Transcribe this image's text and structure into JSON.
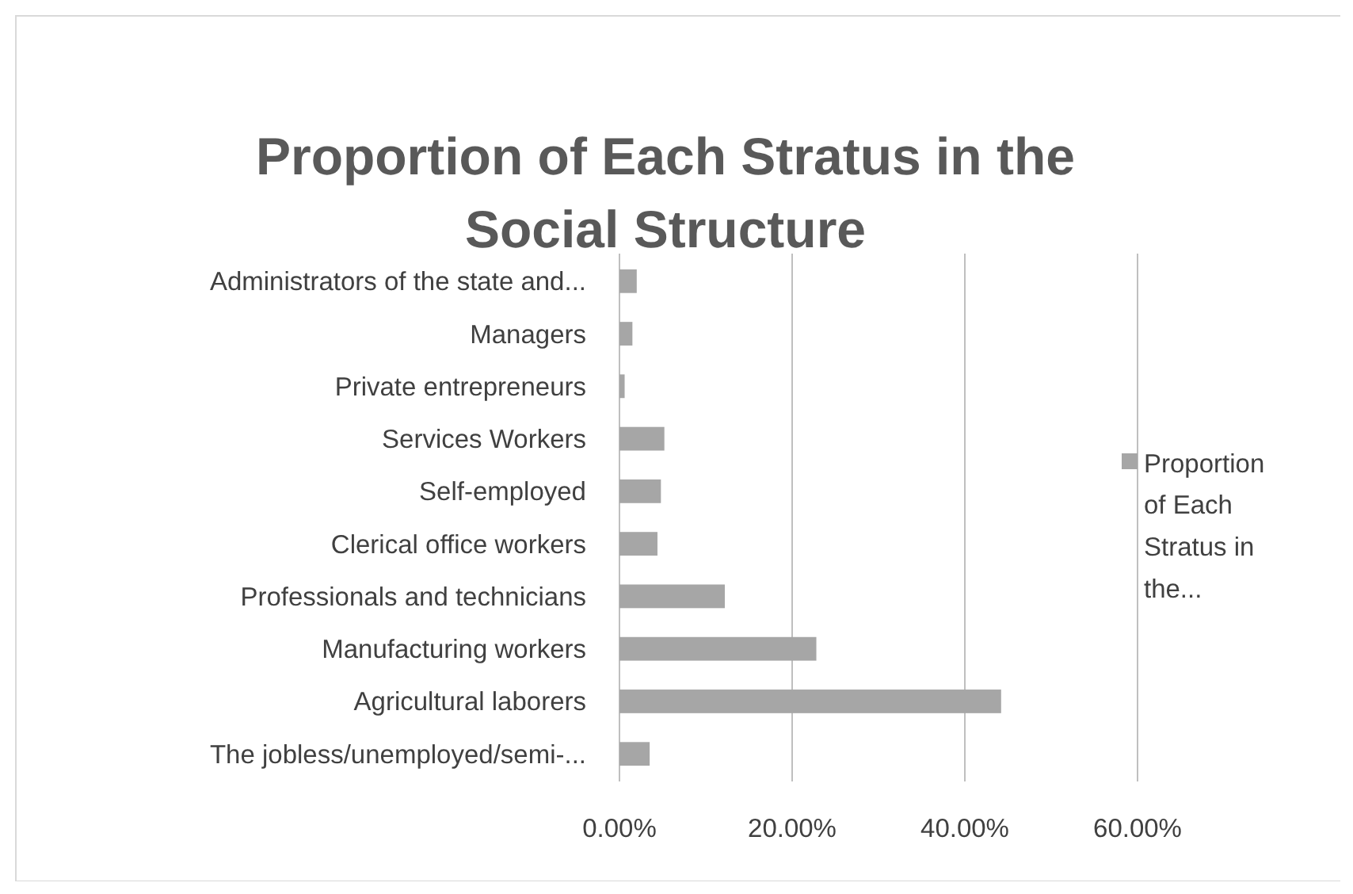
{
  "chart_data": {
    "type": "bar",
    "orientation": "horizontal",
    "title": "Proportion of Each Stratus in the Social Structure",
    "categories": [
      "Administrators of the state and...",
      "Managers",
      "Private entrepreneurs",
      "Services Workers",
      "Self-employed",
      "Clerical office workers",
      "Professionals and technicians",
      "Manufacturing workers",
      "Agricultural laborers",
      "The jobless/unemployed/semi-..."
    ],
    "series": [
      {
        "name": "Proportion of Each Stratus in the...",
        "color": "#a6a6a6",
        "values": [
          2.0,
          1.5,
          0.6,
          5.2,
          4.8,
          4.4,
          12.2,
          22.8,
          44.2,
          3.5
        ]
      }
    ],
    "xlim": [
      0,
      60
    ],
    "xticks": [
      {
        "value": 0,
        "label": "0.00%"
      },
      {
        "value": 20,
        "label": "20.00%"
      },
      {
        "value": 40,
        "label": "40.00%"
      },
      {
        "value": 60,
        "label": "60.00%"
      }
    ],
    "grid": "x",
    "legend": "right"
  }
}
